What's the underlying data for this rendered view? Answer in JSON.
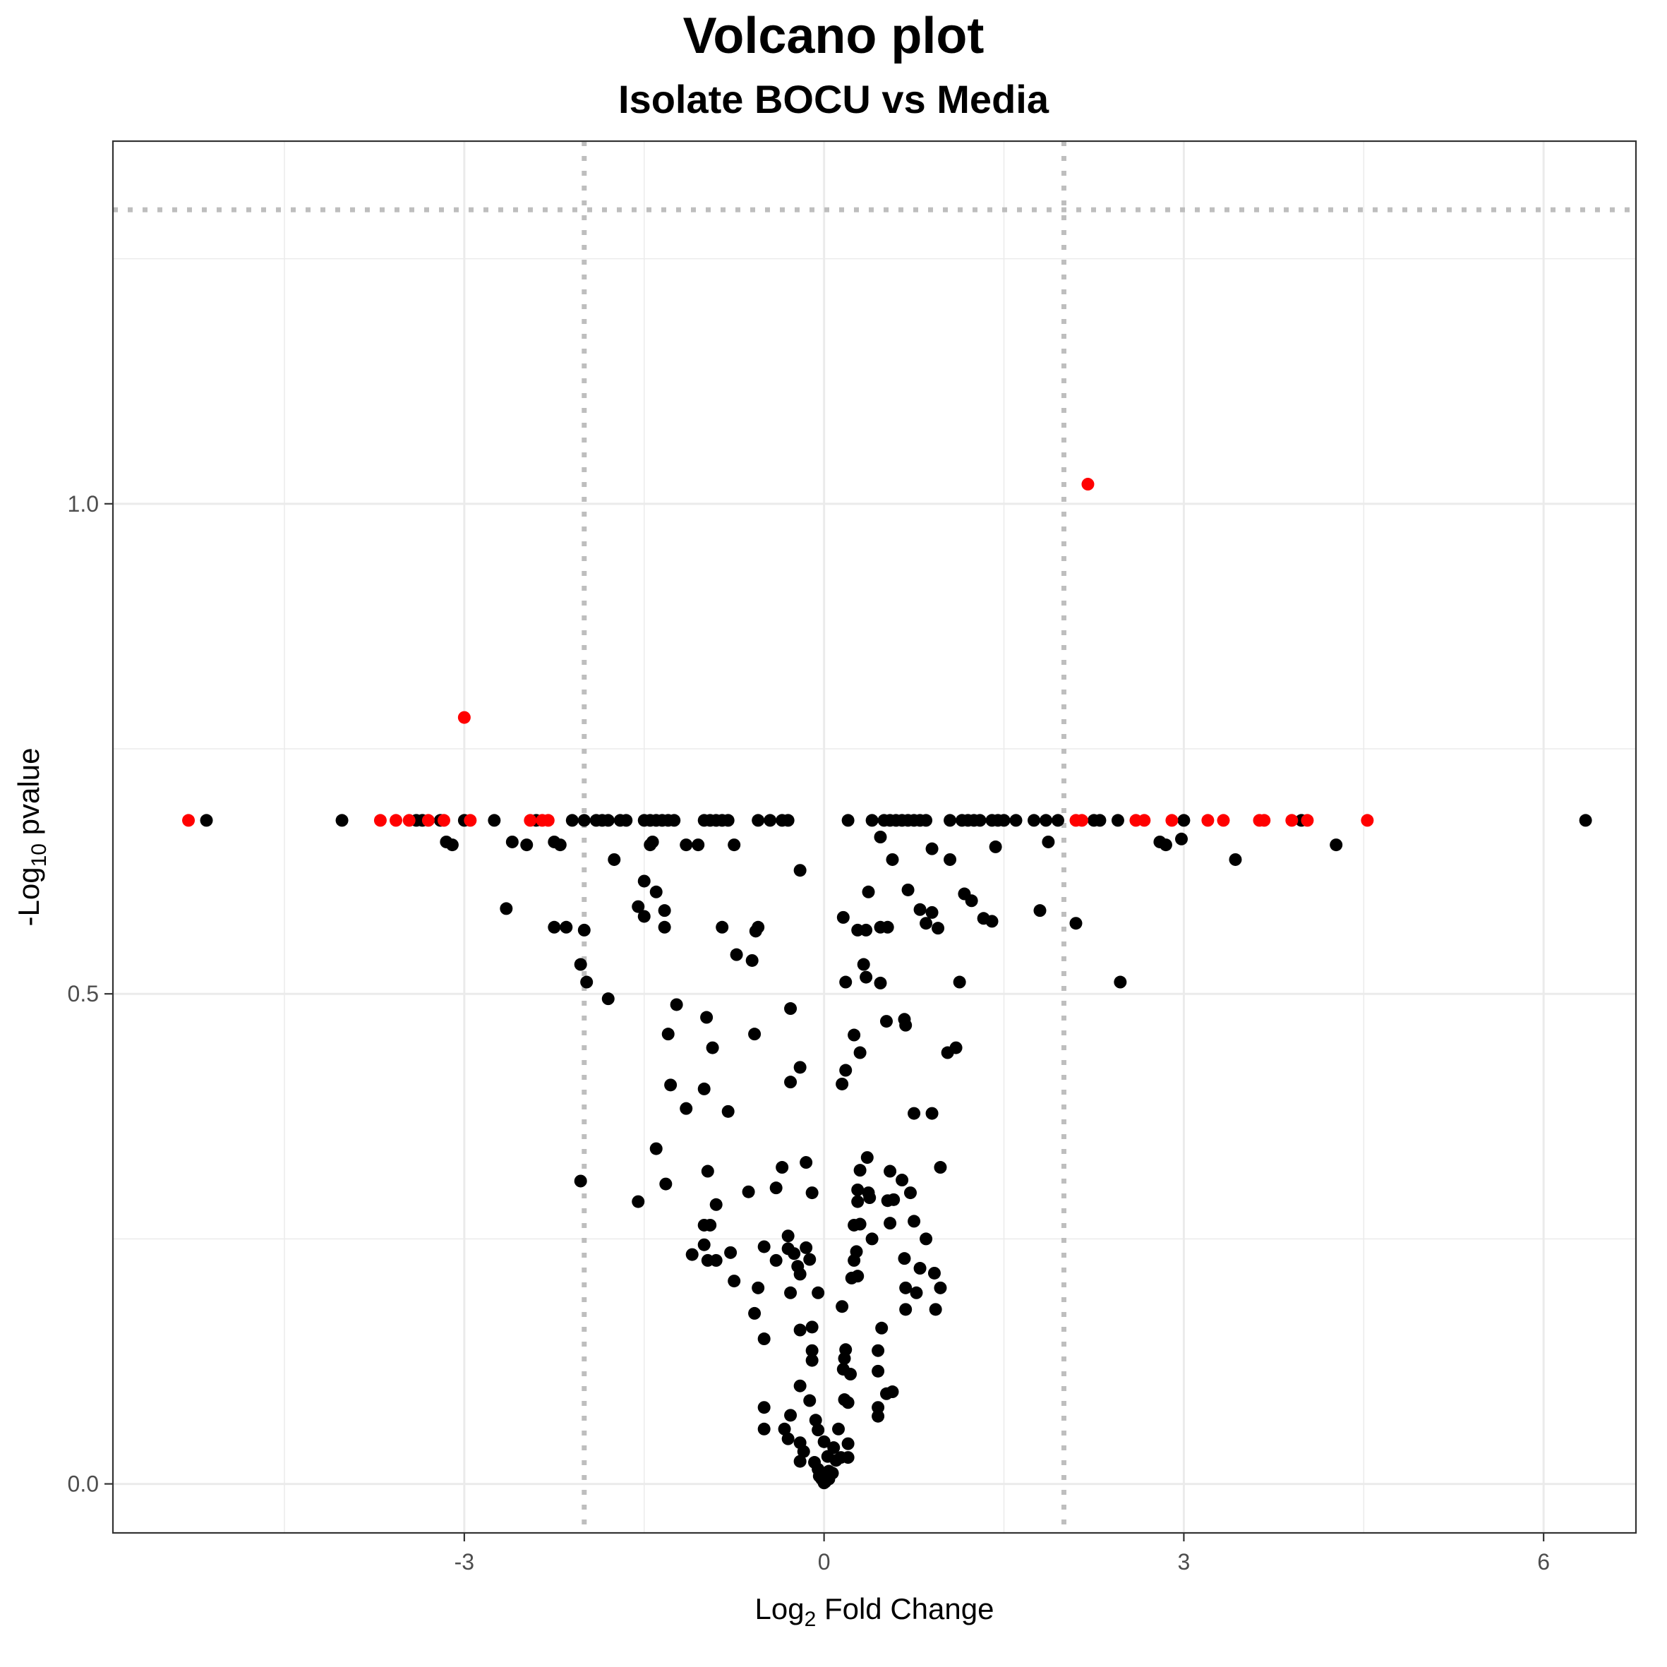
{
  "chart_data": {
    "type": "scatter",
    "title": "Volcano plot",
    "subtitle": "Isolate BOCU vs Media",
    "xlabel": {
      "base": "Log",
      "sub": "2",
      "rest": " Fold Change"
    },
    "ylabel": {
      "base": "-Log",
      "sub": "10",
      "rest": " pvalue"
    },
    "xlim": [
      -5.93,
      6.77
    ],
    "ylim": [
      -0.05,
      1.37
    ],
    "x_ticks": [
      -3,
      0,
      3,
      6
    ],
    "x_tick_labels": [
      "-3",
      "0",
      "3",
      "6"
    ],
    "y_ticks": [
      0.0,
      0.5,
      1.0
    ],
    "y_tick_labels": [
      "0.0",
      "0.5",
      "1.0"
    ],
    "grid": true,
    "reference_lines": {
      "fc_cutoff": [
        -2,
        2
      ],
      "p_cutoff_y": 1.3
    },
    "colors": {
      "significant": "#ff0000",
      "not_significant": "#000000",
      "reference_line": "#bebebe",
      "grid": "#ebebeb"
    },
    "series": [
      {
        "color_key": "significant",
        "points": [
          [
            2.2,
            1.02
          ],
          [
            -3.0,
            0.782
          ],
          [
            -5.3,
            0.677
          ],
          [
            -3.7,
            0.677
          ],
          [
            -3.57,
            0.677
          ],
          [
            -3.46,
            0.677
          ],
          [
            -3.3,
            0.677
          ],
          [
            -3.17,
            0.677
          ],
          [
            -2.95,
            0.677
          ],
          [
            -2.45,
            0.677
          ],
          [
            -2.35,
            0.677
          ],
          [
            -2.3,
            0.677
          ],
          [
            2.1,
            0.677
          ],
          [
            2.15,
            0.677
          ],
          [
            2.6,
            0.677
          ],
          [
            2.67,
            0.677
          ],
          [
            2.9,
            0.677
          ],
          [
            3.2,
            0.677
          ],
          [
            3.33,
            0.677
          ],
          [
            3.63,
            0.677
          ],
          [
            3.67,
            0.677
          ],
          [
            3.9,
            0.677
          ],
          [
            4.03,
            0.677
          ],
          [
            4.53,
            0.677
          ]
        ]
      },
      {
        "color_key": "not_significant",
        "points": [
          [
            -5.15,
            0.677
          ],
          [
            -4.02,
            0.677
          ],
          [
            -3.4,
            0.677
          ],
          [
            -3.35,
            0.677
          ],
          [
            -3.2,
            0.677
          ],
          [
            -3.0,
            0.677
          ],
          [
            -2.75,
            0.677
          ],
          [
            -2.4,
            0.677
          ],
          [
            -2.1,
            0.677
          ],
          [
            -2.0,
            0.677
          ],
          [
            -1.9,
            0.677
          ],
          [
            -1.85,
            0.677
          ],
          [
            -1.8,
            0.677
          ],
          [
            -1.7,
            0.677
          ],
          [
            -1.65,
            0.677
          ],
          [
            -1.5,
            0.677
          ],
          [
            -1.45,
            0.677
          ],
          [
            -1.4,
            0.677
          ],
          [
            -1.35,
            0.677
          ],
          [
            -1.3,
            0.677
          ],
          [
            -1.25,
            0.677
          ],
          [
            -1.0,
            0.677
          ],
          [
            -0.95,
            0.677
          ],
          [
            -0.9,
            0.677
          ],
          [
            -0.85,
            0.677
          ],
          [
            -0.8,
            0.677
          ],
          [
            -0.55,
            0.677
          ],
          [
            -0.45,
            0.677
          ],
          [
            -0.35,
            0.677
          ],
          [
            -0.3,
            0.677
          ],
          [
            0.2,
            0.677
          ],
          [
            0.4,
            0.677
          ],
          [
            0.5,
            0.677
          ],
          [
            0.55,
            0.677
          ],
          [
            0.6,
            0.677
          ],
          [
            0.65,
            0.677
          ],
          [
            0.7,
            0.677
          ],
          [
            0.75,
            0.677
          ],
          [
            0.8,
            0.677
          ],
          [
            0.85,
            0.677
          ],
          [
            1.05,
            0.677
          ],
          [
            1.15,
            0.677
          ],
          [
            1.2,
            0.677
          ],
          [
            1.25,
            0.677
          ],
          [
            1.3,
            0.677
          ],
          [
            1.4,
            0.677
          ],
          [
            1.45,
            0.677
          ],
          [
            1.5,
            0.677
          ],
          [
            1.6,
            0.677
          ],
          [
            1.75,
            0.677
          ],
          [
            1.85,
            0.677
          ],
          [
            1.95,
            0.677
          ],
          [
            2.25,
            0.677
          ],
          [
            2.3,
            0.677
          ],
          [
            2.45,
            0.677
          ],
          [
            3.0,
            0.677
          ],
          [
            3.98,
            0.677
          ],
          [
            6.35,
            0.677
          ],
          [
            -3.15,
            0.655
          ],
          [
            -3.1,
            0.652
          ],
          [
            -2.6,
            0.655
          ],
          [
            -2.48,
            0.652
          ],
          [
            -2.25,
            0.655
          ],
          [
            -2.2,
            0.652
          ],
          [
            -1.45,
            0.652
          ],
          [
            -1.43,
            0.655
          ],
          [
            -1.15,
            0.652
          ],
          [
            -1.05,
            0.652
          ],
          [
            -0.75,
            0.652
          ],
          [
            0.47,
            0.66
          ],
          [
            0.9,
            0.648
          ],
          [
            1.43,
            0.65
          ],
          [
            1.87,
            0.655
          ],
          [
            2.8,
            0.655
          ],
          [
            2.85,
            0.652
          ],
          [
            2.98,
            0.658
          ],
          [
            4.27,
            0.652
          ],
          [
            -1.75,
            0.637
          ],
          [
            0.57,
            0.637
          ],
          [
            1.05,
            0.637
          ],
          [
            3.43,
            0.637
          ],
          [
            -0.2,
            0.626
          ],
          [
            -1.5,
            0.615
          ],
          [
            -1.4,
            0.604
          ],
          [
            0.37,
            0.604
          ],
          [
            0.7,
            0.606
          ],
          [
            1.17,
            0.602
          ],
          [
            -2.65,
            0.587
          ],
          [
            -1.55,
            0.589
          ],
          [
            -1.5,
            0.579
          ],
          [
            -1.33,
            0.585
          ],
          [
            1.23,
            0.595
          ],
          [
            1.8,
            0.585
          ],
          [
            0.8,
            0.586
          ],
          [
            0.9,
            0.583
          ],
          [
            -2.25,
            0.568
          ],
          [
            -2.15,
            0.568
          ],
          [
            -2.0,
            0.565
          ],
          [
            -1.33,
            0.568
          ],
          [
            -0.85,
            0.568
          ],
          [
            -0.55,
            0.568
          ],
          [
            -0.57,
            0.564
          ],
          [
            0.16,
            0.578
          ],
          [
            0.28,
            0.565
          ],
          [
            0.35,
            0.565
          ],
          [
            0.47,
            0.568
          ],
          [
            0.53,
            0.568
          ],
          [
            0.85,
            0.572
          ],
          [
            0.95,
            0.567
          ],
          [
            1.33,
            0.577
          ],
          [
            1.4,
            0.574
          ],
          [
            2.1,
            0.572
          ],
          [
            -0.73,
            0.54
          ],
          [
            -0.6,
            0.534
          ],
          [
            0.33,
            0.53
          ],
          [
            -2.03,
            0.53
          ],
          [
            -1.98,
            0.512
          ],
          [
            0.18,
            0.512
          ],
          [
            0.35,
            0.517
          ],
          [
            0.47,
            0.511
          ],
          [
            1.13,
            0.512
          ],
          [
            2.47,
            0.512
          ],
          [
            -1.8,
            0.495
          ],
          [
            -1.23,
            0.489
          ],
          [
            -0.98,
            0.476
          ],
          [
            -0.28,
            0.485
          ],
          [
            0.52,
            0.472
          ],
          [
            0.67,
            0.474
          ],
          [
            0.68,
            0.468
          ],
          [
            -1.3,
            0.459
          ],
          [
            -0.58,
            0.459
          ],
          [
            0.25,
            0.458
          ],
          [
            -0.93,
            0.445
          ],
          [
            0.3,
            0.44
          ],
          [
            1.03,
            0.44
          ],
          [
            1.1,
            0.445
          ],
          [
            -0.2,
            0.425
          ],
          [
            0.18,
            0.422
          ],
          [
            -1.28,
            0.407
          ],
          [
            -0.28,
            0.41
          ],
          [
            -1.0,
            0.403
          ],
          [
            0.15,
            0.408
          ],
          [
            -1.15,
            0.383
          ],
          [
            -0.8,
            0.38
          ],
          [
            0.75,
            0.378
          ],
          [
            0.9,
            0.378
          ],
          [
            -1.4,
            0.342
          ],
          [
            -0.15,
            0.328
          ],
          [
            -0.35,
            0.323
          ],
          [
            0.36,
            0.333
          ],
          [
            0.3,
            0.32
          ],
          [
            0.55,
            0.319
          ],
          [
            -0.97,
            0.319
          ],
          [
            0.97,
            0.323
          ],
          [
            -2.03,
            0.309
          ],
          [
            -1.32,
            0.306
          ],
          [
            -0.4,
            0.302
          ],
          [
            -0.63,
            0.298
          ],
          [
            -0.1,
            0.297
          ],
          [
            0.28,
            0.3
          ],
          [
            0.37,
            0.297
          ],
          [
            0.65,
            0.31
          ],
          [
            0.72,
            0.297
          ],
          [
            -1.55,
            0.288
          ],
          [
            -0.9,
            0.285
          ],
          [
            0.28,
            0.288
          ],
          [
            0.38,
            0.292
          ],
          [
            0.53,
            0.289
          ],
          [
            0.58,
            0.29
          ],
          [
            0.25,
            0.264
          ],
          [
            0.3,
            0.265
          ],
          [
            0.55,
            0.266
          ],
          [
            0.75,
            0.268
          ],
          [
            -1.0,
            0.264
          ],
          [
            -0.95,
            0.264
          ],
          [
            0.4,
            0.25
          ],
          [
            -0.3,
            0.253
          ],
          [
            0.85,
            0.25
          ],
          [
            -1.0,
            0.244
          ],
          [
            -0.5,
            0.242
          ],
          [
            -0.3,
            0.24
          ],
          [
            -0.15,
            0.241
          ],
          [
            -0.25,
            0.235
          ],
          [
            -1.1,
            0.234
          ],
          [
            -0.78,
            0.236
          ],
          [
            0.27,
            0.237
          ],
          [
            0.67,
            0.23
          ],
          [
            -0.97,
            0.228
          ],
          [
            -0.9,
            0.228
          ],
          [
            -0.4,
            0.228
          ],
          [
            -0.22,
            0.222
          ],
          [
            -0.12,
            0.229
          ],
          [
            0.25,
            0.228
          ],
          [
            0.8,
            0.22
          ],
          [
            0.92,
            0.215
          ],
          [
            -0.2,
            0.214
          ],
          [
            0.28,
            0.212
          ],
          [
            -0.75,
            0.207
          ],
          [
            0.23,
            0.21
          ],
          [
            -0.55,
            0.2
          ],
          [
            -0.28,
            0.195
          ],
          [
            0.68,
            0.2
          ],
          [
            0.77,
            0.195
          ],
          [
            0.97,
            0.2
          ],
          [
            -0.05,
            0.195
          ],
          [
            0.68,
            0.178
          ],
          [
            0.93,
            0.178
          ],
          [
            -0.58,
            0.174
          ],
          [
            0.15,
            0.181
          ],
          [
            0.48,
            0.159
          ],
          [
            -0.2,
            0.157
          ],
          [
            -0.1,
            0.16
          ],
          [
            -0.5,
            0.148
          ],
          [
            -0.1,
            0.136
          ],
          [
            0.18,
            0.137
          ],
          [
            0.45,
            0.136
          ],
          [
            -0.1,
            0.126
          ],
          [
            0.17,
            0.128
          ],
          [
            0.45,
            0.115
          ],
          [
            0.16,
            0.117
          ],
          [
            0.22,
            0.112
          ],
          [
            -0.2,
            0.1
          ],
          [
            0.52,
            0.092
          ],
          [
            0.57,
            0.094
          ],
          [
            -0.12,
            0.085
          ],
          [
            0.17,
            0.086
          ],
          [
            0.2,
            0.083
          ],
          [
            0.45,
            0.078
          ],
          [
            -0.5,
            0.078
          ],
          [
            -0.28,
            0.07
          ],
          [
            0.45,
            0.069
          ],
          [
            -0.07,
            0.065
          ],
          [
            -0.5,
            0.056
          ],
          [
            -0.33,
            0.056
          ],
          [
            -0.05,
            0.055
          ],
          [
            0.12,
            0.056
          ],
          [
            -0.3,
            0.046
          ],
          [
            -0.2,
            0.042
          ],
          [
            0.0,
            0.043
          ],
          [
            0.2,
            0.041
          ],
          [
            0.08,
            0.037
          ],
          [
            -0.17,
            0.033
          ],
          [
            0.03,
            0.028
          ],
          [
            0.14,
            0.027
          ],
          [
            0.2,
            0.027
          ],
          [
            -0.2,
            0.023
          ],
          [
            -0.08,
            0.022
          ],
          [
            0.1,
            0.024
          ],
          [
            -0.05,
            0.015
          ],
          [
            0.04,
            0.013
          ],
          [
            0.07,
            0.011
          ],
          [
            -0.02,
            0.005
          ],
          [
            0.0,
            0.003
          ],
          [
            0.04,
            0.005
          ],
          [
            -0.04,
            0.008
          ],
          [
            0.01,
            0.002
          ],
          [
            0.0,
            0.001
          ]
        ]
      }
    ]
  }
}
